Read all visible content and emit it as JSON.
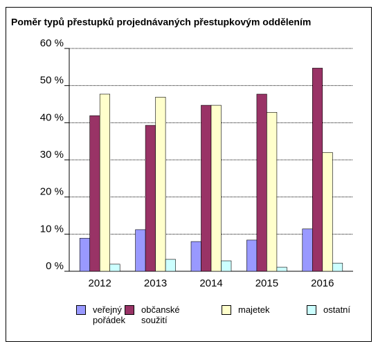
{
  "chart_data": {
    "type": "bar",
    "title": "Poměr typů přestupků projednávaných přestupkovým oddělením",
    "categories": [
      "2012",
      "2013",
      "2014",
      "2015",
      "2016"
    ],
    "series": [
      {
        "name": "veřejný pořádek",
        "color": "#9999ff",
        "values": [
          8.9,
          11.2,
          8.0,
          8.4,
          11.4
        ]
      },
      {
        "name": "občanské soužití",
        "color": "#993366",
        "values": [
          41.9,
          39.3,
          44.7,
          47.7,
          54.7
        ]
      },
      {
        "name": "majetek",
        "color": "#ffffcc",
        "values": [
          47.7,
          46.9,
          44.7,
          42.8,
          32.0
        ]
      },
      {
        "name": "ostatní",
        "color": "#ccffff",
        "values": [
          1.9,
          3.2,
          2.8,
          1.1,
          2.2
        ]
      }
    ],
    "ylim": [
      0,
      60
    ],
    "yticks": [
      {
        "value": 0,
        "label": "0 %"
      },
      {
        "value": 10,
        "label": "10 %"
      },
      {
        "value": 20,
        "label": "20 %"
      },
      {
        "value": 30,
        "label": "30 %"
      },
      {
        "value": 40,
        "label": "40 %"
      },
      {
        "value": 50,
        "label": "50 %"
      },
      {
        "value": 60,
        "label": "60 %"
      }
    ],
    "grid": true
  }
}
